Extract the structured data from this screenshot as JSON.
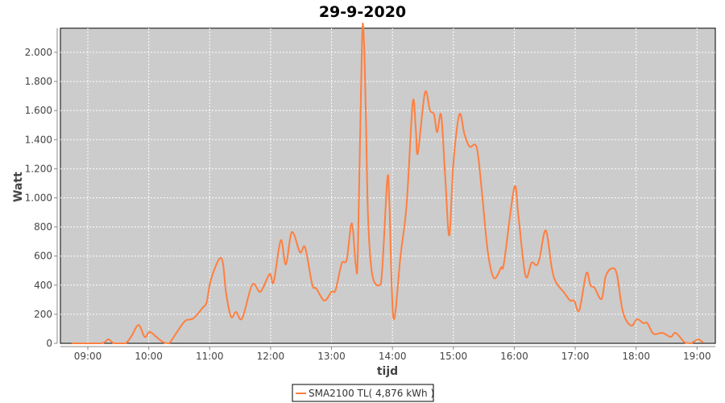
{
  "chart_data": {
    "type": "line",
    "title": "29-9-2020",
    "xlabel": "tijd",
    "ylabel": "Watt",
    "xlim": [
      "08:33",
      "19:18"
    ],
    "ylim": [
      0,
      2166
    ],
    "x_ticks": [
      "09:00",
      "10:00",
      "11:00",
      "12:00",
      "13:00",
      "14:00",
      "15:00",
      "16:00",
      "17:00",
      "18:00",
      "19:00"
    ],
    "y_ticks": [
      0,
      200,
      400,
      600,
      800,
      1000,
      1200,
      1400,
      1600,
      1800,
      2000
    ],
    "y_tick_labels": [
      "0",
      "200",
      "400",
      "600",
      "800",
      "1.000",
      "1.200",
      "1.400",
      "1.600",
      "1.800",
      "2.000"
    ],
    "grid": true,
    "legend_position": "bottom",
    "colors": {
      "plot_background": "#cccccc",
      "grid": "#ffffff",
      "series": "#ff7f3f"
    },
    "series": [
      {
        "name": "SMA2100 TL( 4,876 kWh )",
        "x": [
          "08:44",
          "09:13",
          "09:20",
          "09:26",
          "09:37",
          "09:43",
          "09:50",
          "09:56",
          "10:01",
          "10:09",
          "10:15",
          "10:20",
          "10:28",
          "10:36",
          "10:44",
          "10:53",
          "10:57",
          "11:01",
          "11:09",
          "11:13",
          "11:16",
          "11:21",
          "11:26",
          "11:32",
          "11:42",
          "11:50",
          "11:59",
          "12:03",
          "12:10",
          "12:15",
          "12:21",
          "12:29",
          "12:34",
          "12:41",
          "12:45",
          "12:53",
          "13:00",
          "13:04",
          "13:10",
          "13:15",
          "13:20",
          "13:24",
          "13:26",
          "13:30",
          "13:32",
          "13:34",
          "13:36",
          "13:40",
          "13:47",
          "13:50",
          "13:55",
          "13:57",
          "14:01",
          "14:08",
          "14:14",
          "14:20",
          "14:23",
          "14:25",
          "14:32",
          "14:37",
          "14:41",
          "14:44",
          "14:48",
          "14:52",
          "14:56",
          "15:00",
          "15:06",
          "15:11",
          "15:16",
          "15:23",
          "15:28",
          "15:34",
          "15:40",
          "15:47",
          "15:50",
          "16:00",
          "16:04",
          "16:11",
          "16:17",
          "16:22",
          "16:25",
          "16:31",
          "16:37",
          "16:41",
          "16:49",
          "16:55",
          "16:59",
          "17:04",
          "17:11",
          "17:15",
          "17:19",
          "17:26",
          "17:30",
          "17:36",
          "17:41",
          "17:47",
          "17:55",
          "18:01",
          "18:07",
          "18:11",
          "18:17",
          "18:26",
          "18:34",
          "18:39",
          "18:48",
          "18:54",
          "19:01",
          "19:06"
        ],
        "values": [
          0,
          0,
          28,
          0,
          0,
          50,
          127,
          44,
          78,
          35,
          5,
          0,
          80,
          155,
          172,
          244,
          283,
          432,
          576,
          554,
          355,
          183,
          216,
          172,
          404,
          355,
          476,
          421,
          709,
          543,
          765,
          626,
          659,
          404,
          377,
          294,
          355,
          366,
          548,
          576,
          825,
          532,
          643,
          2072,
          2066,
          1512,
          864,
          476,
          399,
          515,
          1130,
          958,
          172,
          604,
          958,
          1656,
          1474,
          1307,
          1723,
          1601,
          1573,
          1451,
          1568,
          1141,
          742,
          1235,
          1573,
          1435,
          1352,
          1346,
          1047,
          626,
          449,
          521,
          560,
          1070,
          881,
          465,
          554,
          537,
          587,
          776,
          515,
          421,
          349,
          294,
          294,
          227,
          482,
          399,
          382,
          305,
          460,
          515,
          476,
          216,
          122,
          166,
          139,
          139,
          66,
          72,
          44,
          72,
          5,
          0,
          28,
          5
        ]
      }
    ]
  }
}
